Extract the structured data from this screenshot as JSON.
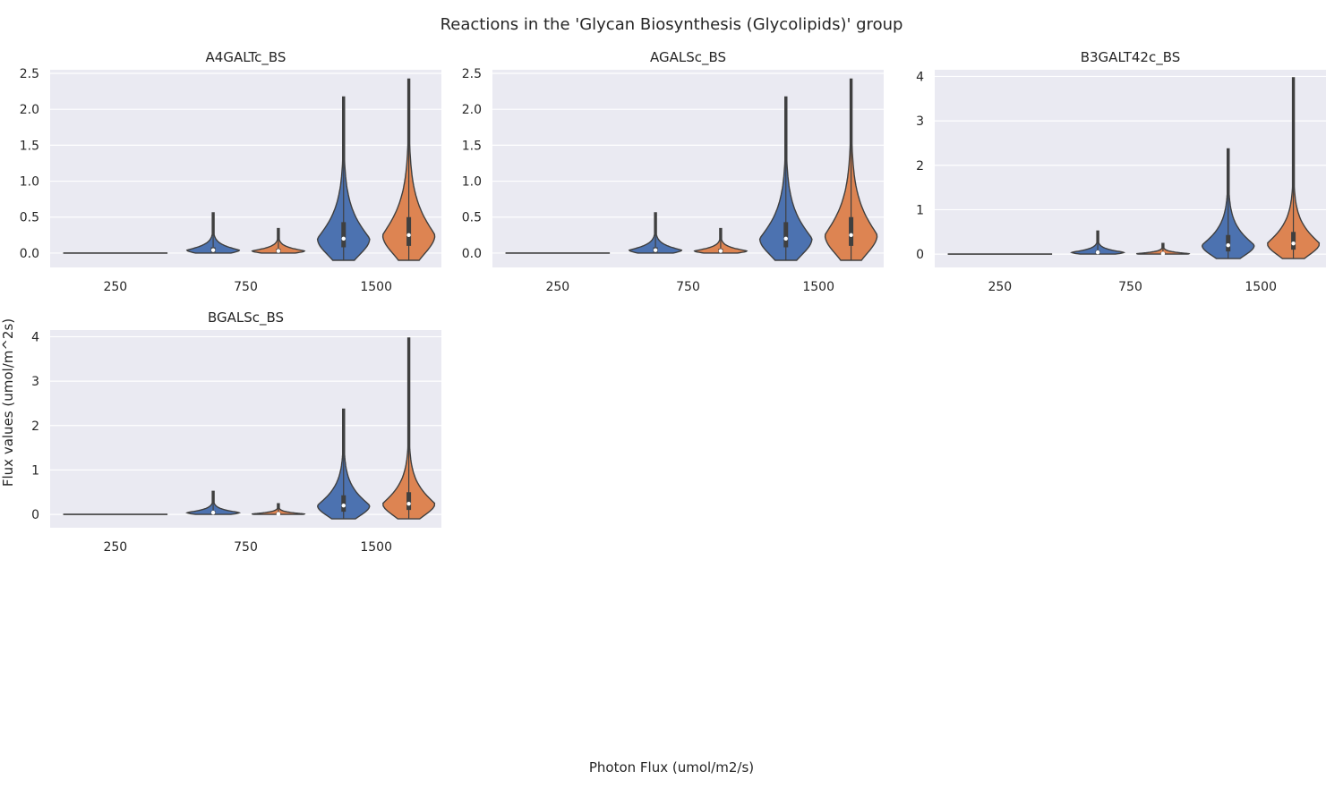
{
  "figure": {
    "title": "Reactions in the 'Glycan Biosynthesis (Glycolipids)' group",
    "xlabel": "Photon Flux (umol/m2/s)",
    "ylabel": "Flux values (umol/m^2s)"
  },
  "colors": {
    "panel_bg": "#EAEAF2",
    "grid": "#FFFFFF",
    "series_a": "#4C72B0",
    "series_b": "#DD8452",
    "outline": "#3F3F3F"
  },
  "chart_data": [
    {
      "type": "violin",
      "title": "A4GALTc_BS",
      "categories": [
        "250",
        "750",
        "1500"
      ],
      "ylim": [
        -0.2,
        2.55
      ],
      "yticks": [
        "0.0",
        "0.5",
        "1.0",
        "1.5",
        "2.0",
        "2.5"
      ],
      "grid": true,
      "series": [
        {
          "color": "#4C72B0",
          "stats": [
            {
              "min": 0,
              "q1": 0,
              "median": 0,
              "q3": 0,
              "max": 0
            },
            {
              "min": 0,
              "q1": 0.01,
              "median": 0.04,
              "q3": 0.08,
              "max": 0.56
            },
            {
              "min": -0.1,
              "q1": 0.08,
              "median": 0.2,
              "q3": 0.43,
              "max": 2.17
            }
          ]
        },
        {
          "color": "#DD8452",
          "stats": [
            null,
            {
              "min": 0,
              "q1": 0.01,
              "median": 0.03,
              "q3": 0.06,
              "max": 0.34
            },
            {
              "min": -0.1,
              "q1": 0.1,
              "median": 0.25,
              "q3": 0.5,
              "max": 2.42
            }
          ]
        }
      ]
    },
    {
      "type": "violin",
      "title": "AGALSc_BS",
      "categories": [
        "250",
        "750",
        "1500"
      ],
      "ylim": [
        -0.2,
        2.55
      ],
      "yticks": [
        "0.0",
        "0.5",
        "1.0",
        "1.5",
        "2.0",
        "2.5"
      ],
      "grid": true,
      "series": [
        {
          "color": "#4C72B0",
          "stats": [
            {
              "min": 0,
              "q1": 0,
              "median": 0,
              "q3": 0,
              "max": 0
            },
            {
              "min": 0,
              "q1": 0.01,
              "median": 0.04,
              "q3": 0.08,
              "max": 0.56
            },
            {
              "min": -0.1,
              "q1": 0.08,
              "median": 0.2,
              "q3": 0.43,
              "max": 2.17
            }
          ]
        },
        {
          "color": "#DD8452",
          "stats": [
            null,
            {
              "min": 0,
              "q1": 0.01,
              "median": 0.03,
              "q3": 0.06,
              "max": 0.34
            },
            {
              "min": -0.1,
              "q1": 0.1,
              "median": 0.25,
              "q3": 0.5,
              "max": 2.42
            }
          ]
        }
      ]
    },
    {
      "type": "violin",
      "title": "B3GALT42c_BS",
      "categories": [
        "250",
        "750",
        "1500"
      ],
      "ylim": [
        -0.3,
        4.15
      ],
      "yticks": [
        "0",
        "1",
        "2",
        "3",
        "4"
      ],
      "grid": true,
      "series": [
        {
          "color": "#4C72B0",
          "stats": [
            {
              "min": 0,
              "q1": 0,
              "median": 0,
              "q3": 0,
              "max": 0
            },
            {
              "min": 0,
              "q1": 0.01,
              "median": 0.04,
              "q3": 0.08,
              "max": 0.52
            },
            {
              "min": -0.1,
              "q1": 0.06,
              "median": 0.2,
              "q3": 0.43,
              "max": 2.37
            }
          ]
        },
        {
          "color": "#DD8452",
          "stats": [
            null,
            {
              "min": 0,
              "q1": 0,
              "median": 0.01,
              "q3": 0.04,
              "max": 0.24
            },
            {
              "min": -0.1,
              "q1": 0.1,
              "median": 0.24,
              "q3": 0.5,
              "max": 3.97
            }
          ]
        }
      ]
    },
    {
      "type": "violin",
      "title": "BGALSc_BS",
      "categories": [
        "250",
        "750",
        "1500"
      ],
      "ylim": [
        -0.3,
        4.15
      ],
      "yticks": [
        "0",
        "1",
        "2",
        "3",
        "4"
      ],
      "grid": true,
      "series": [
        {
          "color": "#4C72B0",
          "stats": [
            {
              "min": 0,
              "q1": 0,
              "median": 0,
              "q3": 0,
              "max": 0
            },
            {
              "min": 0,
              "q1": 0.01,
              "median": 0.04,
              "q3": 0.08,
              "max": 0.52
            },
            {
              "min": -0.1,
              "q1": 0.06,
              "median": 0.2,
              "q3": 0.43,
              "max": 2.37
            }
          ]
        },
        {
          "color": "#DD8452",
          "stats": [
            null,
            {
              "min": 0,
              "q1": 0,
              "median": 0.01,
              "q3": 0.04,
              "max": 0.24
            },
            {
              "min": -0.1,
              "q1": 0.1,
              "median": 0.24,
              "q3": 0.5,
              "max": 3.97
            }
          ]
        }
      ]
    }
  ]
}
